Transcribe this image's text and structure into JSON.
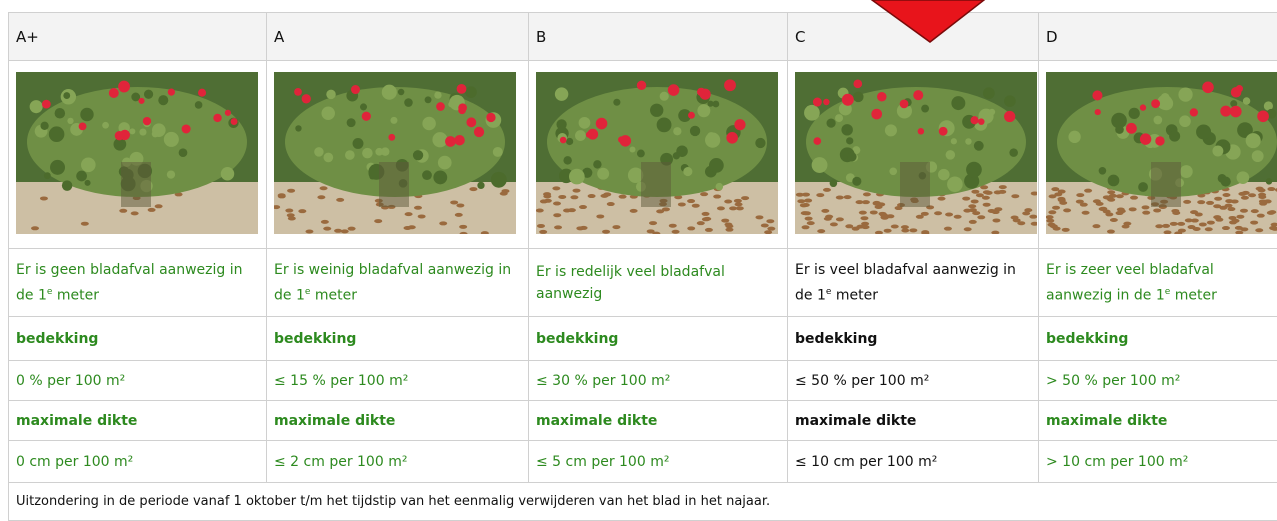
{
  "columns": [
    {
      "label": "A+",
      "color": "#2d8a1f",
      "description": [
        "Er is geen bladafval aanwezig in de 1",
        "e",
        " meter"
      ],
      "coverage_label": "bedekking",
      "coverage": "0 % per 100 m²",
      "thickness_label": "maximale dikte",
      "thickness": "0 cm per 100 m²"
    },
    {
      "label": "A",
      "color": "#2d8a1f",
      "description": [
        "Er is weinig bladafval aanwezig in de 1",
        "e",
        " meter"
      ],
      "coverage_label": "bedekking",
      "coverage": "≤ 15 % per 100 m²",
      "thickness_label": "maximale dikte",
      "thickness": "≤ 2 cm per 100 m²"
    },
    {
      "label": "B",
      "color": "#2d8a1f",
      "description": [
        "Er is redelijk veel bladafval aanwezig"
      ],
      "coverage_label": "bedekking",
      "coverage": "≤ 30 % per 100 m²",
      "thickness_label": "maximale dikte",
      "thickness": "≤ 5 cm per 100 m²"
    },
    {
      "label": "C",
      "color": "#111111",
      "description": [
        "Er is veel bladafval aanwezig in de 1",
        "e",
        " meter"
      ],
      "coverage_label": "bedekking",
      "coverage": "≤ 50 % per 100 m²",
      "thickness_label": "maximale dikte",
      "thickness": "≤ 10 cm per 100 m²"
    },
    {
      "label": "D",
      "color": "#2d8a1f",
      "description": [
        "Er is zeer veel bladafval aanwezig in de 1",
        "e",
        " meter"
      ],
      "coverage_label": "bedekking",
      "coverage": "> 50 % per 100 m²",
      "thickness_label": "maximale dikte",
      "thickness": "> 10 cm per 100 m²"
    }
  ],
  "footer": "Uitzondering in de periode vanaf 1 oktober t/m het tijdstip van het eenmalig verwijderen van het blad in het najaar."
}
